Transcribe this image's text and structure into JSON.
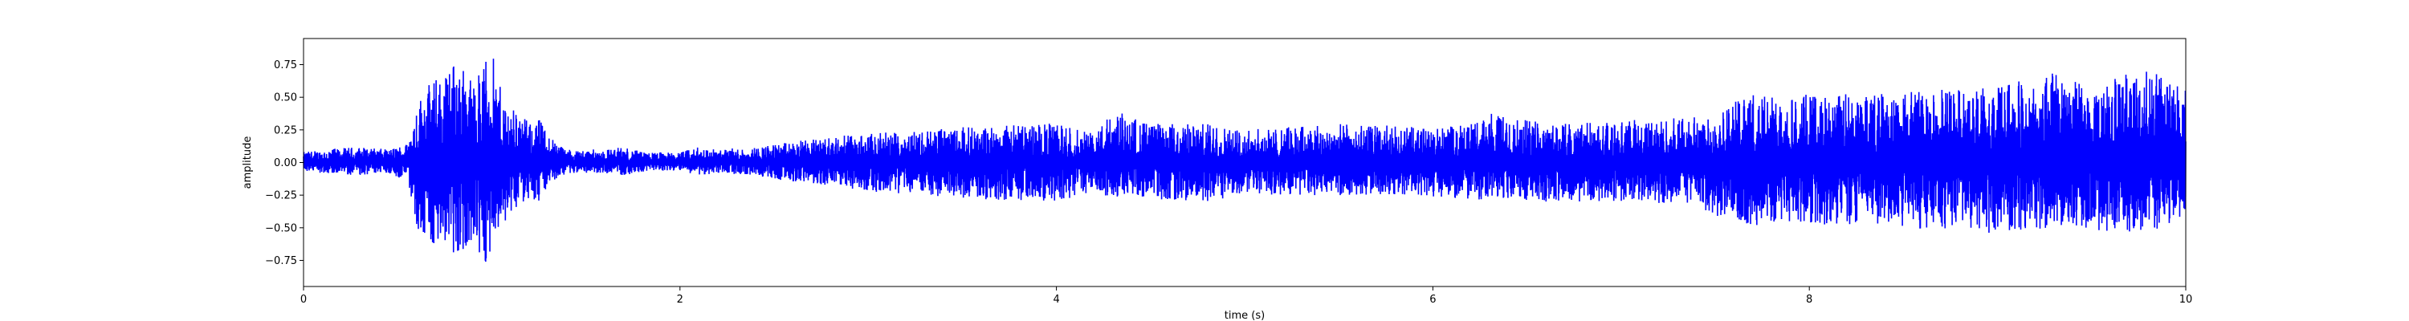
{
  "chart_data": {
    "type": "line",
    "title": "",
    "xlabel": "time (s)",
    "ylabel": "amplitude",
    "xlim": [
      0,
      10
    ],
    "ylim": [
      -0.95,
      0.95
    ],
    "x_ticks": [
      0,
      2,
      4,
      6,
      8,
      10
    ],
    "x_tick_labels": [
      "0",
      "2",
      "4",
      "6",
      "8",
      "10"
    ],
    "y_ticks": [
      0.75,
      0.5,
      0.25,
      0.0,
      -0.25,
      -0.5,
      -0.75
    ],
    "y_tick_labels": [
      "0.75",
      "0.50",
      "0.25",
      "0.00",
      "−0.25",
      "−0.50",
      "−0.75"
    ],
    "grid": false,
    "legend": "none",
    "series": [
      {
        "color": "#0000ff",
        "envelope_time_s": [
          0.0,
          0.1,
          0.3,
          0.45,
          0.55,
          0.6,
          0.65,
          0.75,
          0.8,
          0.85,
          0.9,
          0.95,
          1.0,
          1.05,
          1.1,
          1.2,
          1.25,
          1.3,
          1.4,
          1.6,
          1.7,
          1.8,
          2.0,
          2.1,
          2.2,
          2.4,
          2.6,
          2.8,
          3.0,
          3.3,
          3.6,
          4.0,
          4.2,
          4.3,
          4.35,
          4.5,
          4.8,
          5.0,
          5.5,
          5.8,
          6.0,
          6.2,
          6.3,
          6.4,
          6.6,
          7.0,
          7.4,
          7.5,
          7.6,
          7.7,
          8.0,
          8.5,
          9.0,
          9.3,
          9.5,
          9.8,
          10.0
        ],
        "envelope_upper": [
          0.08,
          0.1,
          0.12,
          0.1,
          0.15,
          0.45,
          0.6,
          0.7,
          0.8,
          0.75,
          0.62,
          0.78,
          0.85,
          0.55,
          0.45,
          0.3,
          0.35,
          0.22,
          0.1,
          0.1,
          0.12,
          0.08,
          0.08,
          0.12,
          0.1,
          0.12,
          0.16,
          0.2,
          0.22,
          0.25,
          0.28,
          0.3,
          0.22,
          0.4,
          0.38,
          0.3,
          0.3,
          0.25,
          0.3,
          0.28,
          0.26,
          0.3,
          0.38,
          0.35,
          0.3,
          0.32,
          0.35,
          0.4,
          0.48,
          0.52,
          0.52,
          0.55,
          0.58,
          0.7,
          0.6,
          0.72,
          0.55
        ],
        "envelope_lower": [
          -0.07,
          -0.08,
          -0.1,
          -0.08,
          -0.15,
          -0.5,
          -0.62,
          -0.68,
          -0.72,
          -0.7,
          -0.65,
          -0.8,
          -0.7,
          -0.5,
          -0.38,
          -0.28,
          -0.32,
          -0.18,
          -0.08,
          -0.08,
          -0.1,
          -0.07,
          -0.06,
          -0.1,
          -0.08,
          -0.1,
          -0.15,
          -0.18,
          -0.22,
          -0.25,
          -0.28,
          -0.3,
          -0.22,
          -0.28,
          -0.25,
          -0.28,
          -0.3,
          -0.25,
          -0.25,
          -0.25,
          -0.26,
          -0.28,
          -0.3,
          -0.28,
          -0.3,
          -0.3,
          -0.32,
          -0.42,
          -0.45,
          -0.48,
          -0.48,
          -0.5,
          -0.55,
          -0.5,
          -0.52,
          -0.55,
          -0.4
        ]
      }
    ]
  }
}
